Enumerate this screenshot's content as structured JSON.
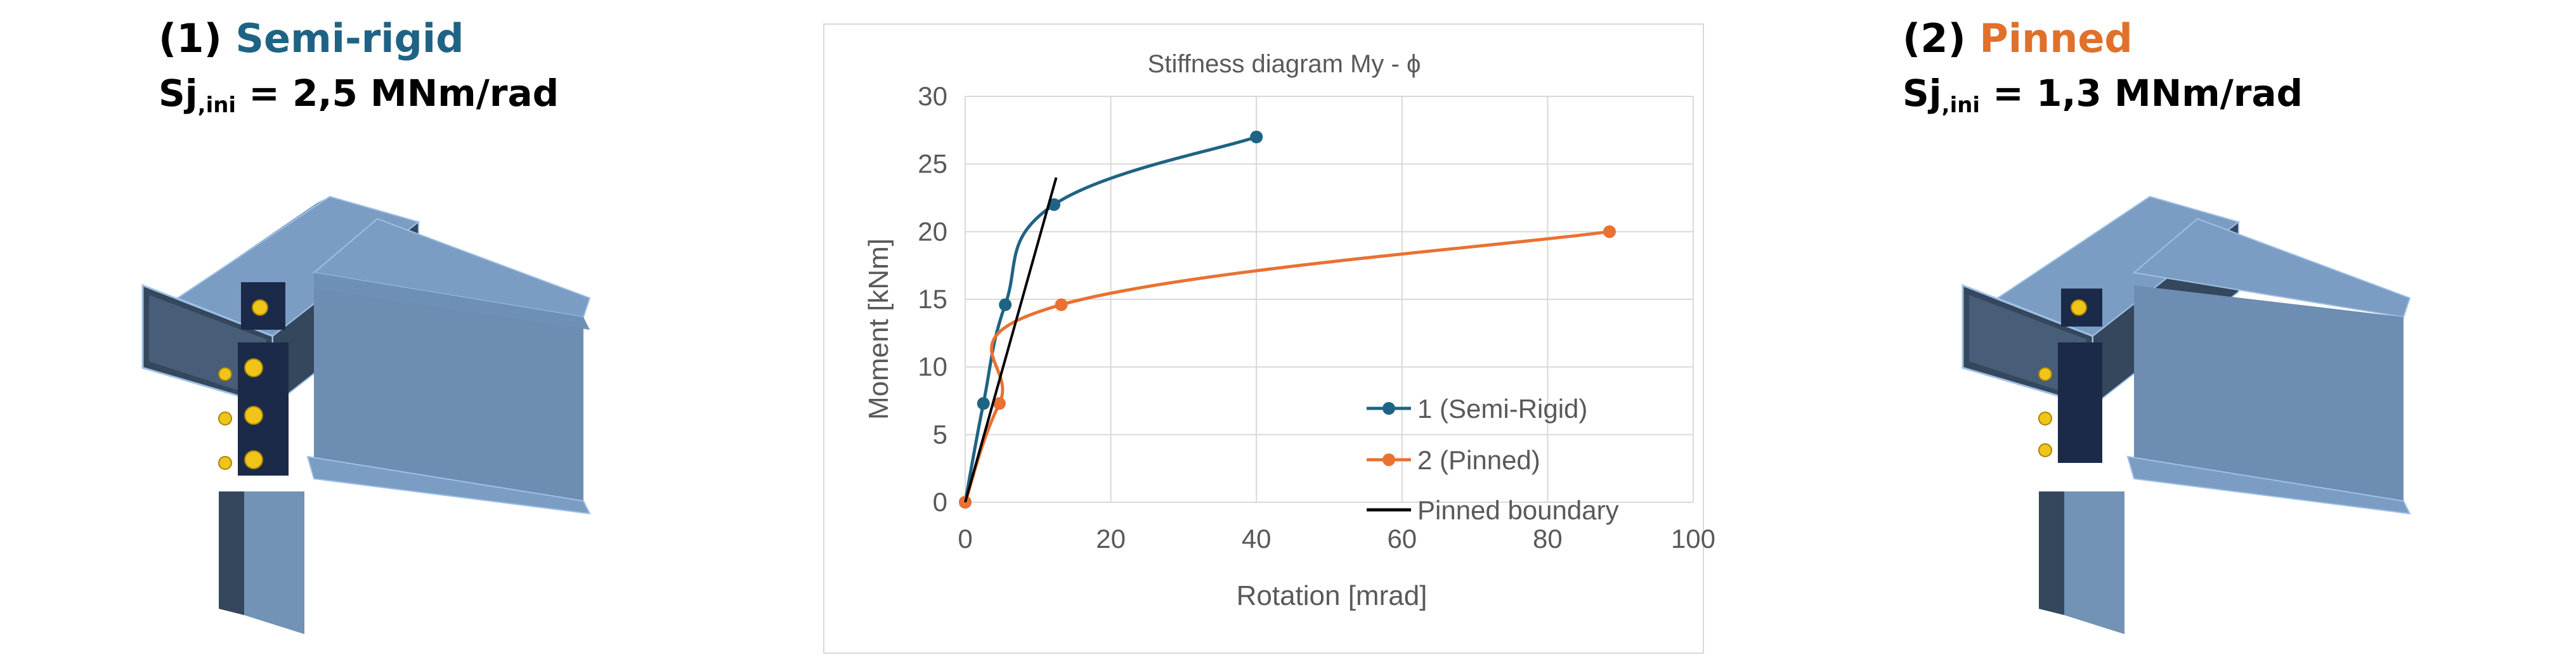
{
  "left_panel": {
    "number": "(1)",
    "type_label": "Semi-rigid",
    "stiffness_symbol": "Sj",
    "stiffness_subscript": ",ini",
    "stiffness_value": "= 2,5 MNm/rad",
    "accent_color": "#1f6384"
  },
  "right_panel": {
    "number": "(2)",
    "type_label": "Pinned",
    "stiffness_symbol": "Sj",
    "stiffness_subscript": ",ini",
    "stiffness_value": "= 1,3 MNm/rad",
    "accent_color": "#e0702a"
  },
  "chart_data": {
    "type": "line",
    "title": "Stiffness diagram My - ϕ",
    "xlabel": "Rotation [mrad]",
    "ylabel": "Moment [kNm]",
    "xlim": [
      0,
      100
    ],
    "ylim": [
      0,
      30
    ],
    "xticks": [
      "0",
      "20",
      "40",
      "60",
      "80",
      "100"
    ],
    "yticks": [
      "0",
      "5",
      "10",
      "15",
      "20",
      "25",
      "30"
    ],
    "grid": true,
    "legend_position": "bottom-right",
    "series": [
      {
        "name": "1 (Semi-Rigid)",
        "color": "#1f6384",
        "markers": true,
        "smooth": true,
        "x": [
          0,
          2.5,
          5.5,
          12.2,
          40
        ],
        "y": [
          0,
          7.3,
          14.6,
          22,
          27
        ]
      },
      {
        "name": "2 (Pinned)",
        "color": "#e97132",
        "markers": true,
        "smooth": true,
        "x": [
          0,
          4.7,
          13.2,
          88.5
        ],
        "y": [
          0,
          7.3,
          14.6,
          20
        ]
      },
      {
        "name": "Pinned boundary",
        "color": "#000000",
        "markers": false,
        "smooth": false,
        "x": [
          0,
          12.5
        ],
        "y": [
          0,
          24
        ]
      }
    ]
  }
}
